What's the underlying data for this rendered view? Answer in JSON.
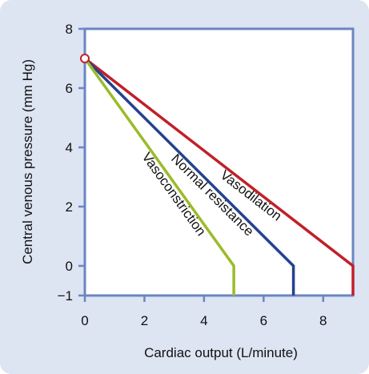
{
  "chart_data": {
    "type": "line",
    "xlabel": "Cardiac output (L/minute)",
    "ylabel": "Central venous pressure (mm Hg)",
    "xlim": [
      0,
      9
    ],
    "ylim": [
      -1,
      8
    ],
    "x_ticks": [
      0,
      2,
      4,
      6,
      8
    ],
    "y_ticks": [
      -1,
      0,
      2,
      4,
      6,
      8
    ],
    "grid": false,
    "series": [
      {
        "name": "Vasodilation",
        "color": "#c0202a",
        "points": [
          [
            0,
            7
          ],
          [
            9,
            0
          ],
          [
            9,
            -1
          ]
        ]
      },
      {
        "name": "Normal resistance",
        "color": "#25418f",
        "points": [
          [
            0,
            7
          ],
          [
            7,
            0
          ],
          [
            7,
            -1
          ]
        ]
      },
      {
        "name": "Vasoconstriction",
        "color": "#9bbb2b",
        "points": [
          [
            0,
            7
          ],
          [
            5,
            0
          ],
          [
            5,
            -1
          ]
        ]
      }
    ],
    "marker": {
      "x": 0,
      "y": 7,
      "style": "open-circle",
      "color": "#c0202a"
    },
    "frame_color": "#6b86c2"
  }
}
